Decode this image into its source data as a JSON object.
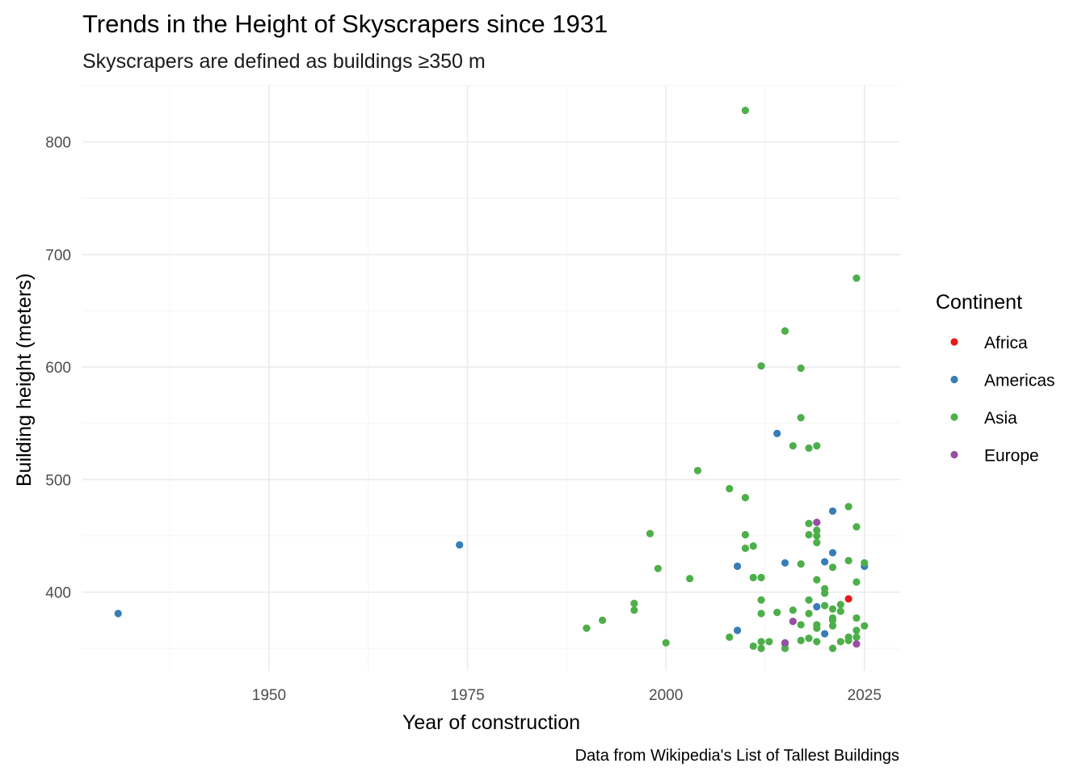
{
  "chart_data": {
    "type": "scatter",
    "title": "Trends in the Height of Skyscrapers since 1931",
    "subtitle": "Skyscrapers are defined as buildings ≥350 m",
    "xlabel": "Year of construction",
    "ylabel": "Building height (meters)",
    "caption": "Data from Wikipedia's List of Tallest Buildings",
    "xlim": [
      1926.5,
      2029.5
    ],
    "ylim": [
      330,
      850
    ],
    "x_ticks": [
      1950,
      1975,
      2000,
      2025
    ],
    "y_ticks": [
      400,
      500,
      600,
      700,
      800
    ],
    "grid": true,
    "legend": {
      "title": "Continent",
      "position": "right",
      "entries": [
        {
          "name": "Africa",
          "color": "#e41a1c"
        },
        {
          "name": "Americas",
          "color": "#377eb8"
        },
        {
          "name": "Asia",
          "color": "#4daf4a"
        },
        {
          "name": "Europe",
          "color": "#984ea3"
        }
      ]
    },
    "series": [
      {
        "name": "Africa",
        "color": "#e41a1c",
        "points": [
          [
            2023,
            394
          ]
        ]
      },
      {
        "name": "Americas",
        "color": "#377eb8",
        "points": [
          [
            1931,
            381
          ],
          [
            1974,
            442
          ],
          [
            2009,
            423
          ],
          [
            2009,
            366
          ],
          [
            2014,
            541
          ],
          [
            2015,
            426
          ],
          [
            2019,
            387
          ],
          [
            2020,
            427
          ],
          [
            2020,
            363
          ],
          [
            2021,
            472
          ],
          [
            2021,
            435
          ],
          [
            2025,
            423
          ]
        ]
      },
      {
        "name": "Asia",
        "color": "#4daf4a",
        "points": [
          [
            1990,
            368
          ],
          [
            1992,
            375
          ],
          [
            1996,
            384
          ],
          [
            1996,
            390
          ],
          [
            1998,
            452
          ],
          [
            1999,
            421
          ],
          [
            2000,
            355
          ],
          [
            2003,
            412
          ],
          [
            2004,
            508
          ],
          [
            2008,
            492
          ],
          [
            2008,
            360
          ],
          [
            2010,
            828
          ],
          [
            2010,
            484
          ],
          [
            2010,
            451
          ],
          [
            2010,
            439
          ],
          [
            2011,
            441
          ],
          [
            2011,
            413
          ],
          [
            2011,
            352
          ],
          [
            2012,
            601
          ],
          [
            2012,
            413
          ],
          [
            2012,
            393
          ],
          [
            2012,
            381
          ],
          [
            2012,
            356
          ],
          [
            2012,
            350
          ],
          [
            2013,
            356
          ],
          [
            2014,
            382
          ],
          [
            2015,
            632
          ],
          [
            2015,
            354
          ],
          [
            2015,
            350
          ],
          [
            2016,
            530
          ],
          [
            2016,
            384
          ],
          [
            2017,
            599
          ],
          [
            2017,
            555
          ],
          [
            2017,
            425
          ],
          [
            2017,
            371
          ],
          [
            2017,
            357
          ],
          [
            2018,
            528
          ],
          [
            2018,
            461
          ],
          [
            2018,
            451
          ],
          [
            2018,
            393
          ],
          [
            2018,
            381
          ],
          [
            2018,
            359
          ],
          [
            2019,
            530
          ],
          [
            2019,
            455
          ],
          [
            2019,
            450
          ],
          [
            2019,
            444
          ],
          [
            2019,
            411
          ],
          [
            2019,
            371
          ],
          [
            2019,
            368
          ],
          [
            2019,
            356
          ],
          [
            2020,
            403
          ],
          [
            2020,
            399
          ],
          [
            2020,
            388
          ],
          [
            2021,
            422
          ],
          [
            2021,
            385
          ],
          [
            2021,
            377
          ],
          [
            2021,
            375
          ],
          [
            2021,
            370
          ],
          [
            2021,
            350
          ],
          [
            2022,
            389
          ],
          [
            2022,
            383
          ],
          [
            2022,
            356
          ],
          [
            2023,
            476
          ],
          [
            2023,
            428
          ],
          [
            2023,
            360
          ],
          [
            2023,
            357
          ],
          [
            2024,
            679
          ],
          [
            2024,
            458
          ],
          [
            2024,
            409
          ],
          [
            2024,
            377
          ],
          [
            2024,
            366
          ],
          [
            2024,
            360
          ],
          [
            2025,
            426
          ],
          [
            2025,
            370
          ]
        ]
      },
      {
        "name": "Europe",
        "color": "#984ea3",
        "points": [
          [
            2016,
            374
          ],
          [
            2015,
            355
          ],
          [
            2019,
            462
          ],
          [
            2024,
            354
          ]
        ]
      }
    ]
  }
}
